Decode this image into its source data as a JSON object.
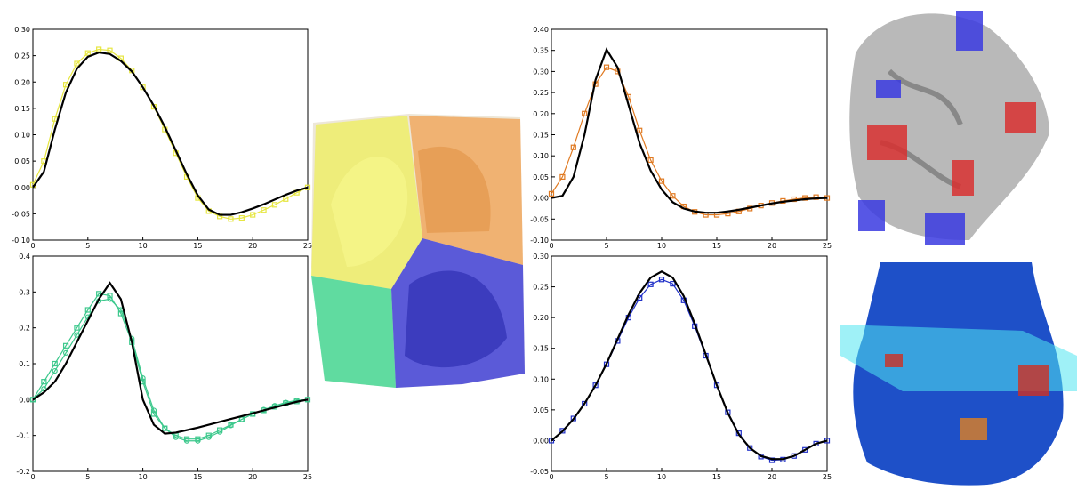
{
  "chart_data": [
    {
      "type": "line",
      "xlim": [
        0,
        25
      ],
      "xticks": [
        0,
        5,
        10,
        15,
        20,
        25
      ],
      "ylim": [
        -0.1,
        0.3
      ],
      "yticks": [
        {
          "value": -0.1,
          "label": "-0.10"
        },
        -0.05,
        {
          "value": 0,
          "label": "0.00"
        },
        0.05,
        {
          "value": 0.1,
          "label": "0.10"
        },
        0.15,
        {
          "value": 0.2,
          "label": "0.20"
        },
        0.25,
        {
          "value": 0.3,
          "label": "0.30"
        }
      ],
      "x": [
        0,
        1,
        2,
        3,
        4,
        5,
        6,
        7,
        8,
        9,
        10,
        11,
        12,
        13,
        14,
        15,
        16,
        17,
        18,
        19,
        20,
        21,
        22,
        23,
        24,
        25
      ],
      "series": [
        {
          "color": "#e6e640",
          "marker": "square",
          "values": [
            0.005,
            0.05,
            0.13,
            0.195,
            0.235,
            0.255,
            0.262,
            0.26,
            0.245,
            0.222,
            0.19,
            0.153,
            0.11,
            0.065,
            0.02,
            -0.02,
            -0.045,
            -0.055,
            -0.06,
            -0.058,
            -0.052,
            -0.043,
            -0.033,
            -0.022,
            -0.01,
            0.0
          ]
        },
        {
          "color": "#000000",
          "marker": "none",
          "values": [
            0.0,
            0.03,
            0.11,
            0.18,
            0.225,
            0.248,
            0.256,
            0.253,
            0.24,
            0.22,
            0.19,
            0.155,
            0.115,
            0.07,
            0.025,
            -0.015,
            -0.042,
            -0.052,
            -0.052,
            -0.047,
            -0.04,
            -0.032,
            -0.023,
            -0.014,
            -0.006,
            0.0
          ]
        }
      ]
    },
    {
      "type": "line",
      "xlim": [
        0,
        25
      ],
      "xticks": [
        0,
        5,
        10,
        15,
        20,
        25
      ],
      "ylim": [
        -0.2,
        0.4
      ],
      "yticks": [
        -0.2,
        -0.1,
        {
          "value": 0,
          "label": "0.0"
        },
        0.1,
        0.2,
        0.3,
        0.4
      ],
      "x": [
        0,
        1,
        2,
        3,
        4,
        5,
        6,
        7,
        8,
        9,
        10,
        11,
        12,
        13,
        14,
        15,
        16,
        17,
        18,
        19,
        20,
        21,
        22,
        23,
        24,
        25
      ],
      "series": [
        {
          "color": "#3cc88c",
          "marker": "square",
          "values": [
            0.0,
            0.05,
            0.1,
            0.15,
            0.2,
            0.25,
            0.295,
            0.29,
            0.24,
            0.16,
            0.05,
            -0.04,
            -0.08,
            -0.1,
            -0.11,
            -0.11,
            -0.1,
            -0.085,
            -0.07,
            -0.055,
            -0.04,
            -0.03,
            -0.02,
            -0.01,
            -0.005,
            0.0
          ]
        },
        {
          "color": "#3cc88c",
          "marker": "circle",
          "values": [
            0.0,
            0.03,
            0.08,
            0.13,
            0.18,
            0.23,
            0.275,
            0.28,
            0.25,
            0.17,
            0.06,
            -0.03,
            -0.08,
            -0.105,
            -0.115,
            -0.115,
            -0.105,
            -0.09,
            -0.072,
            -0.055,
            -0.04,
            -0.028,
            -0.017,
            -0.008,
            -0.002,
            0.0
          ]
        },
        {
          "color": "#000000",
          "marker": "none",
          "values": [
            0.0,
            0.02,
            0.05,
            0.1,
            0.16,
            0.22,
            0.28,
            0.325,
            0.28,
            0.16,
            0.0,
            -0.07,
            -0.095,
            -0.092,
            -0.085,
            -0.078,
            -0.07,
            -0.062,
            -0.054,
            -0.046,
            -0.038,
            -0.03,
            -0.022,
            -0.014,
            -0.006,
            0.0
          ]
        }
      ]
    },
    {
      "type": "line",
      "xlim": [
        0,
        25
      ],
      "xticks": [
        0,
        5,
        10,
        15,
        20,
        25
      ],
      "ylim": [
        -0.1,
        0.4
      ],
      "yticks": [
        {
          "value": -0.1,
          "label": "-0.10"
        },
        -0.05,
        {
          "value": 0,
          "label": "0.00"
        },
        0.05,
        {
          "value": 0.1,
          "label": "0.10"
        },
        0.15,
        {
          "value": 0.2,
          "label": "0.20"
        },
        0.25,
        {
          "value": 0.3,
          "label": "0.30"
        },
        0.35,
        {
          "value": 0.4,
          "label": "0.40"
        }
      ],
      "x": [
        0,
        1,
        2,
        3,
        4,
        5,
        6,
        7,
        8,
        9,
        10,
        11,
        12,
        13,
        14,
        15,
        16,
        17,
        18,
        19,
        20,
        21,
        22,
        23,
        24,
        25
      ],
      "series": [
        {
          "color": "#e07a22",
          "marker": "square",
          "values": [
            0.01,
            0.05,
            0.12,
            0.2,
            0.27,
            0.31,
            0.3,
            0.24,
            0.16,
            0.09,
            0.04,
            0.005,
            -0.02,
            -0.033,
            -0.04,
            -0.04,
            -0.037,
            -0.032,
            -0.025,
            -0.018,
            -0.012,
            -0.007,
            -0.003,
            0.0,
            0.002,
            0.0
          ]
        },
        {
          "color": "#000000",
          "marker": "none",
          "values": [
            0.0,
            0.005,
            0.05,
            0.15,
            0.28,
            0.352,
            0.31,
            0.22,
            0.13,
            0.065,
            0.02,
            -0.01,
            -0.025,
            -0.032,
            -0.035,
            -0.035,
            -0.032,
            -0.028,
            -0.023,
            -0.018,
            -0.013,
            -0.009,
            -0.006,
            -0.003,
            -0.001,
            0.0
          ]
        }
      ]
    },
    {
      "type": "line",
      "xlim": [
        0,
        25
      ],
      "xticks": [
        0,
        5,
        10,
        15,
        20,
        25
      ],
      "ylim": [
        -0.05,
        0.3
      ],
      "yticks": [
        -0.05,
        {
          "value": 0,
          "label": "0.00"
        },
        0.05,
        {
          "value": 0.1,
          "label": "0.10"
        },
        0.15,
        {
          "value": 0.2,
          "label": "0.20"
        },
        0.25,
        {
          "value": 0.3,
          "label": "0.30"
        }
      ],
      "x": [
        0,
        1,
        2,
        3,
        4,
        5,
        6,
        7,
        8,
        9,
        10,
        11,
        12,
        13,
        14,
        15,
        16,
        17,
        18,
        19,
        20,
        21,
        22,
        23,
        24,
        25
      ],
      "series": [
        {
          "color": "#2030c8",
          "marker": "square",
          "values": [
            0.0,
            0.016,
            0.036,
            0.06,
            0.09,
            0.124,
            0.162,
            0.2,
            0.232,
            0.254,
            0.262,
            0.255,
            0.228,
            0.186,
            0.138,
            0.09,
            0.046,
            0.012,
            -0.012,
            -0.026,
            -0.032,
            -0.031,
            -0.025,
            -0.015,
            -0.005,
            0.0
          ]
        },
        {
          "color": "#000000",
          "marker": "none",
          "values": [
            0.0,
            0.015,
            0.035,
            0.06,
            0.09,
            0.125,
            0.165,
            0.205,
            0.24,
            0.265,
            0.275,
            0.265,
            0.235,
            0.19,
            0.14,
            0.09,
            0.045,
            0.01,
            -0.012,
            -0.025,
            -0.03,
            -0.03,
            -0.025,
            -0.015,
            -0.005,
            0.0
          ]
        }
      ]
    }
  ]
}
